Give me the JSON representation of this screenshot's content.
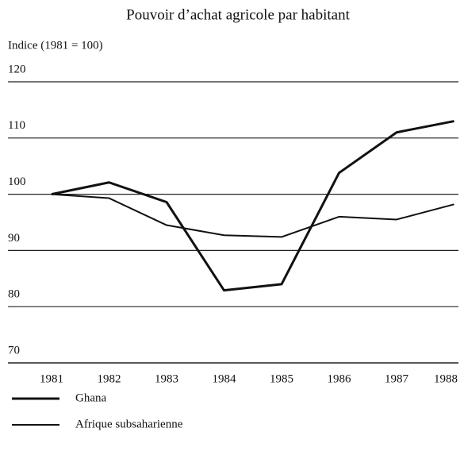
{
  "chart_data": {
    "type": "line",
    "title": "Pouvoir d’achat agricole par habitant",
    "y_label": "Indice (1981 = 100)",
    "categories": [
      "1981",
      "1982",
      "1983",
      "1984",
      "1985",
      "1986",
      "1987",
      "1988"
    ],
    "series": [
      {
        "name": "Ghana",
        "color": "#111111",
        "line_width": 3,
        "values": [
          100,
          102.1,
          98.6,
          82.9,
          84.0,
          103.8,
          111.0,
          113.0
        ]
      },
      {
        "name": "Afrique subsaharienne",
        "color": "#111111",
        "line_width": 2,
        "values": [
          100,
          99.3,
          94.5,
          92.7,
          92.4,
          96.0,
          95.5,
          98.2
        ]
      }
    ],
    "ylim": [
      70,
      120
    ],
    "yticks": [
      70,
      80,
      90,
      100,
      110,
      120
    ],
    "grid": true
  }
}
